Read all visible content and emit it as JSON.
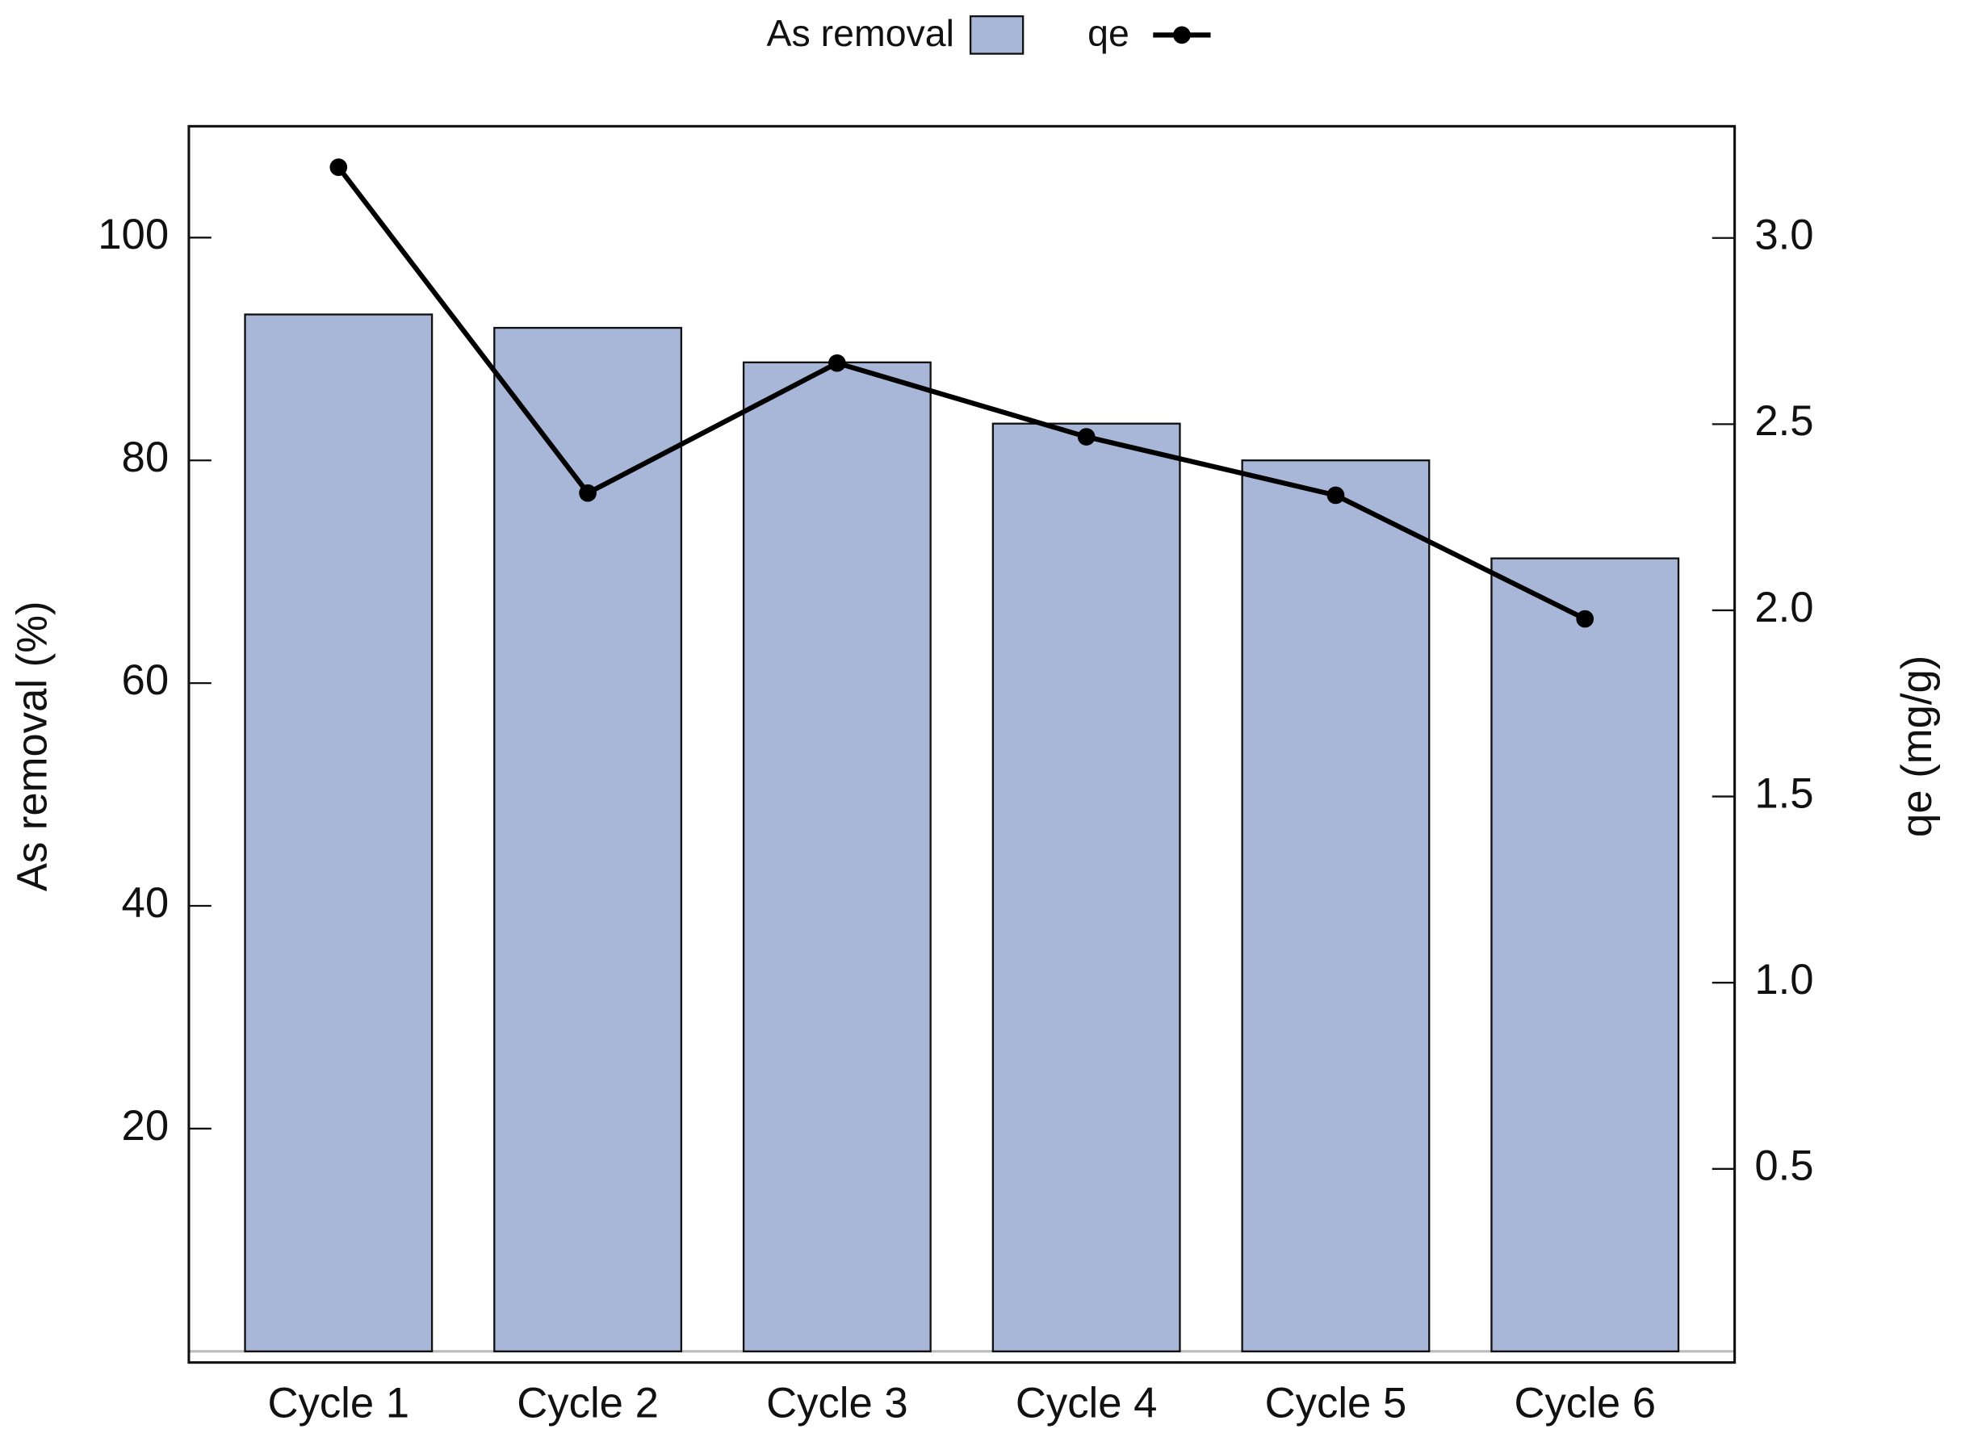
{
  "chart_data": {
    "type": "bar-line",
    "categories": [
      "Cycle 1",
      "Cycle 2",
      "Cycle 3",
      "Cycle 4",
      "Cycle 5",
      "Cycle 6"
    ],
    "series": [
      {
        "name": "As removal",
        "type": "bar",
        "color": "#a8b6d8",
        "values": [
          93.1,
          91.9,
          88.8,
          83.3,
          80.0,
          71.2
        ]
      },
      {
        "name": "qe",
        "type": "line",
        "axis": "y2",
        "color": "#000000",
        "values": [
          3.19,
          2.315,
          2.664,
          2.466,
          2.309,
          1.977
        ]
      }
    ],
    "y_label": "As removal (%)",
    "y2_label": "qe (mg/g)",
    "ylim": [
      -1,
      110
    ],
    "yticks": [
      20,
      40,
      60,
      80,
      100
    ],
    "y2lim": [
      -0.02,
      3.3
    ],
    "y2ticks": [
      {
        "value": 0.5,
        "label": "0.5"
      },
      {
        "value": 1,
        "label": "1.0"
      },
      {
        "value": 1.5,
        "label": "1.5"
      },
      {
        "value": 2,
        "label": "2.0"
      },
      {
        "value": 2.5,
        "label": "2.5"
      },
      {
        "value": 3,
        "label": "3.0"
      }
    ],
    "legend": "top"
  }
}
